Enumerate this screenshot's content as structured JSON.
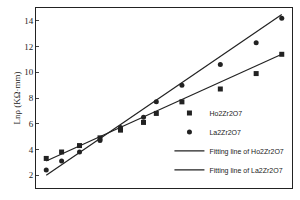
{
  "chart_data": {
    "type": "scatter",
    "y_label": "Lnρ (KΩ·mm)",
    "xlim": [
      0,
      10
    ],
    "ylim": [
      1,
      15
    ],
    "yticks": [
      2,
      4,
      6,
      8,
      10,
      12,
      14
    ],
    "tick_labels": "y",
    "grid": false,
    "legend": "lower right",
    "series": [
      {
        "name": "Ho2Zr2O7",
        "type": "scatter",
        "marker": "square",
        "color": "#222222",
        "x": [
          0.4,
          1.0,
          1.7,
          2.5,
          3.3,
          4.2,
          4.7,
          5.7,
          7.2,
          8.6,
          9.6
        ],
        "values": [
          3.3,
          3.8,
          4.3,
          4.9,
          5.5,
          6.1,
          6.8,
          7.7,
          8.7,
          9.9,
          11.4
        ]
      },
      {
        "name": "La2Zr2O7",
        "type": "scatter",
        "marker": "circle",
        "color": "#222222",
        "x": [
          0.4,
          1.0,
          1.7,
          2.5,
          3.3,
          4.2,
          4.7,
          5.7,
          7.2,
          8.6,
          9.6
        ],
        "values": [
          2.4,
          3.1,
          3.8,
          4.7,
          5.7,
          6.5,
          7.7,
          9.0,
          10.6,
          12.3,
          14.2
        ]
      },
      {
        "name": "Fitting line of Ho2Zr2O7",
        "type": "line",
        "line_style": "solid",
        "color": "#222222",
        "x": [
          0.4,
          9.6
        ],
        "values": [
          3.1,
          11.4
        ]
      },
      {
        "name": "Fitting line of La2Zr2O7",
        "type": "line",
        "line_style": "solid",
        "color": "#222222",
        "x": [
          0.4,
          9.6
        ],
        "values": [
          2.0,
          14.5
        ]
      }
    ]
  }
}
